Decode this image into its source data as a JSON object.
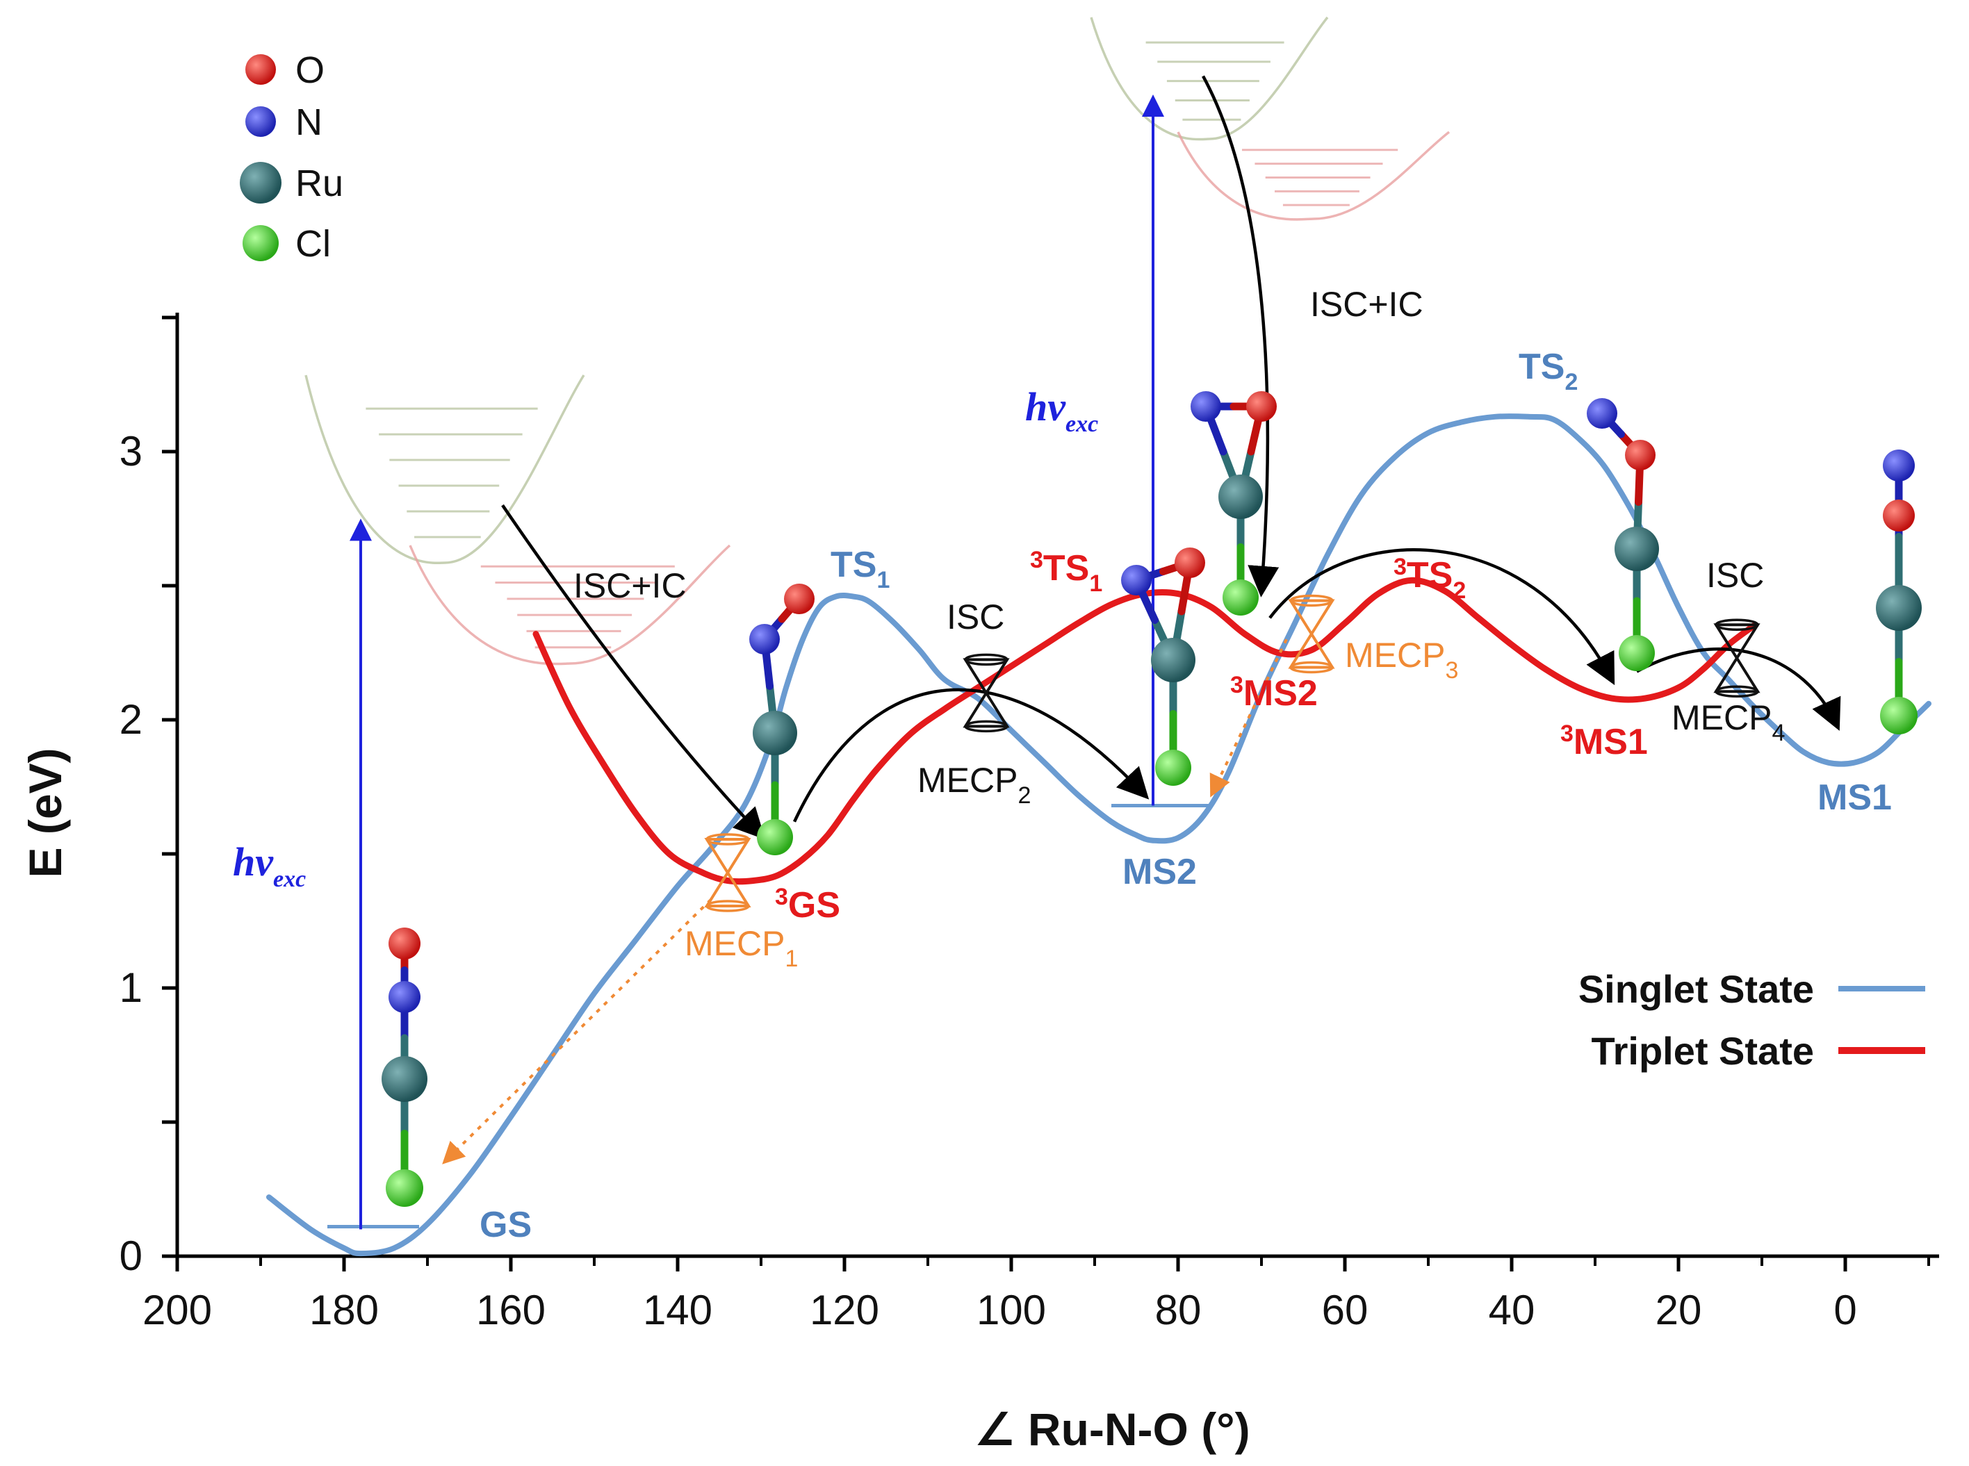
{
  "chart_data": {
    "type": "line",
    "title": "",
    "xlabel": "∠ Ru-N-O (°)",
    "ylabel": "E (eV)",
    "xlim": [
      200,
      -10
    ],
    "ylim": [
      0,
      3.5
    ],
    "x_ticks": [
      "200",
      "180",
      "160",
      "140",
      "120",
      "100",
      "80",
      "60",
      "40",
      "20",
      "0"
    ],
    "y_ticks": [
      "0",
      "1",
      "2",
      "3"
    ],
    "legend_position": "bottom-right",
    "series": [
      {
        "name": "Singlet State",
        "color": "#6a9bd1",
        "x": [
          189,
          184,
          180,
          178,
          174,
          170,
          165,
          160,
          155,
          150,
          145,
          140,
          136,
          132,
          129,
          127,
          125,
          123,
          121,
          119,
          117,
          114,
          111,
          108,
          104,
          100,
          96,
          92,
          88,
          85,
          83,
          80,
          77,
          74,
          70,
          66,
          62,
          58,
          54,
          50,
          46,
          42,
          38,
          35,
          32,
          29,
          26,
          23,
          20,
          17,
          14,
          11,
          8,
          5,
          2,
          -1,
          -4,
          -7,
          -10
        ],
        "y": [
          0.22,
          0.1,
          0.03,
          0.01,
          0.03,
          0.12,
          0.3,
          0.52,
          0.75,
          0.98,
          1.18,
          1.38,
          1.52,
          1.68,
          1.9,
          2.12,
          2.3,
          2.42,
          2.46,
          2.46,
          2.44,
          2.36,
          2.26,
          2.15,
          2.08,
          1.96,
          1.84,
          1.72,
          1.62,
          1.57,
          1.55,
          1.56,
          1.64,
          1.8,
          2.1,
          2.36,
          2.62,
          2.84,
          2.98,
          3.07,
          3.11,
          3.13,
          3.13,
          3.12,
          3.05,
          2.95,
          2.8,
          2.62,
          2.42,
          2.25,
          2.15,
          2.05,
          1.96,
          1.88,
          1.84,
          1.84,
          1.88,
          1.97,
          2.06
        ]
      },
      {
        "name": "Triplet State",
        "color": "#e41a1c",
        "x": [
          157,
          153,
          149,
          145,
          141,
          137,
          134,
          131,
          128,
          125,
          122,
          119,
          116,
          112,
          108,
          104,
          100,
          96,
          92,
          88,
          84,
          80,
          76,
          72,
          68,
          64,
          60,
          56,
          52,
          48,
          44,
          40,
          36,
          32,
          28,
          24,
          20,
          17,
          14,
          11
        ],
        "y": [
          2.32,
          2.05,
          1.84,
          1.65,
          1.5,
          1.43,
          1.4,
          1.4,
          1.42,
          1.48,
          1.57,
          1.7,
          1.82,
          1.95,
          2.04,
          2.12,
          2.2,
          2.28,
          2.36,
          2.43,
          2.47,
          2.47,
          2.42,
          2.32,
          2.25,
          2.26,
          2.36,
          2.47,
          2.52,
          2.48,
          2.38,
          2.28,
          2.19,
          2.12,
          2.08,
          2.08,
          2.12,
          2.19,
          2.28,
          2.35
        ]
      }
    ],
    "point_labels": [
      {
        "text": "GS",
        "state": "singlet",
        "x": 176,
        "y": 0.0
      },
      {
        "text": "TS",
        "sub": "1",
        "state": "singlet",
        "x": 118,
        "y": 2.46
      },
      {
        "text": "MS2",
        "state": "singlet",
        "x": 82,
        "y": 1.55
      },
      {
        "text": "TS",
        "sub": "2",
        "state": "singlet",
        "x": 36,
        "y": 3.13
      },
      {
        "text": "MS1",
        "state": "singlet",
        "x": 2,
        "y": 1.84
      },
      {
        "text": "GS",
        "sup": "3",
        "state": "triplet",
        "x": 131,
        "y": 1.4
      },
      {
        "text": "TS",
        "sup": "3",
        "sub": "1",
        "state": "triplet",
        "x": 81,
        "y": 2.47
      },
      {
        "text": "MS2",
        "sup": "3",
        "state": "triplet",
        "x": 67,
        "y": 2.25
      },
      {
        "text": "TS",
        "sup": "3",
        "sub": "2",
        "state": "triplet",
        "x": 52,
        "y": 2.52
      },
      {
        "text": "MS1",
        "sup": "3",
        "state": "triplet",
        "x": 26,
        "y": 2.08
      }
    ],
    "crossing_points": [
      {
        "text": "MECP",
        "sub": "1",
        "x": 134,
        "y": 1.43
      },
      {
        "text": "MECP",
        "sub": "2",
        "x": 103,
        "y": 2.1
      },
      {
        "text": "MECP",
        "sub": "3",
        "x": 64,
        "y": 2.32
      },
      {
        "text": "MECP",
        "sub": "4",
        "x": 13,
        "y": 2.23
      }
    ],
    "annotations": [
      {
        "text": "hν",
        "sub": "exc"
      },
      {
        "text": "hν",
        "sub": "exc"
      },
      {
        "text": "ISC+IC"
      },
      {
        "text": "ISC+IC"
      },
      {
        "text": "ISC"
      },
      {
        "text": "ISC"
      }
    ],
    "atom_legend": [
      {
        "label": "O",
        "color": "#e0201c"
      },
      {
        "label": "N",
        "color": "#2b32d6"
      },
      {
        "label": "Ru",
        "color": "#2f6f73"
      },
      {
        "label": "Cl",
        "color": "#44d62a"
      }
    ]
  }
}
